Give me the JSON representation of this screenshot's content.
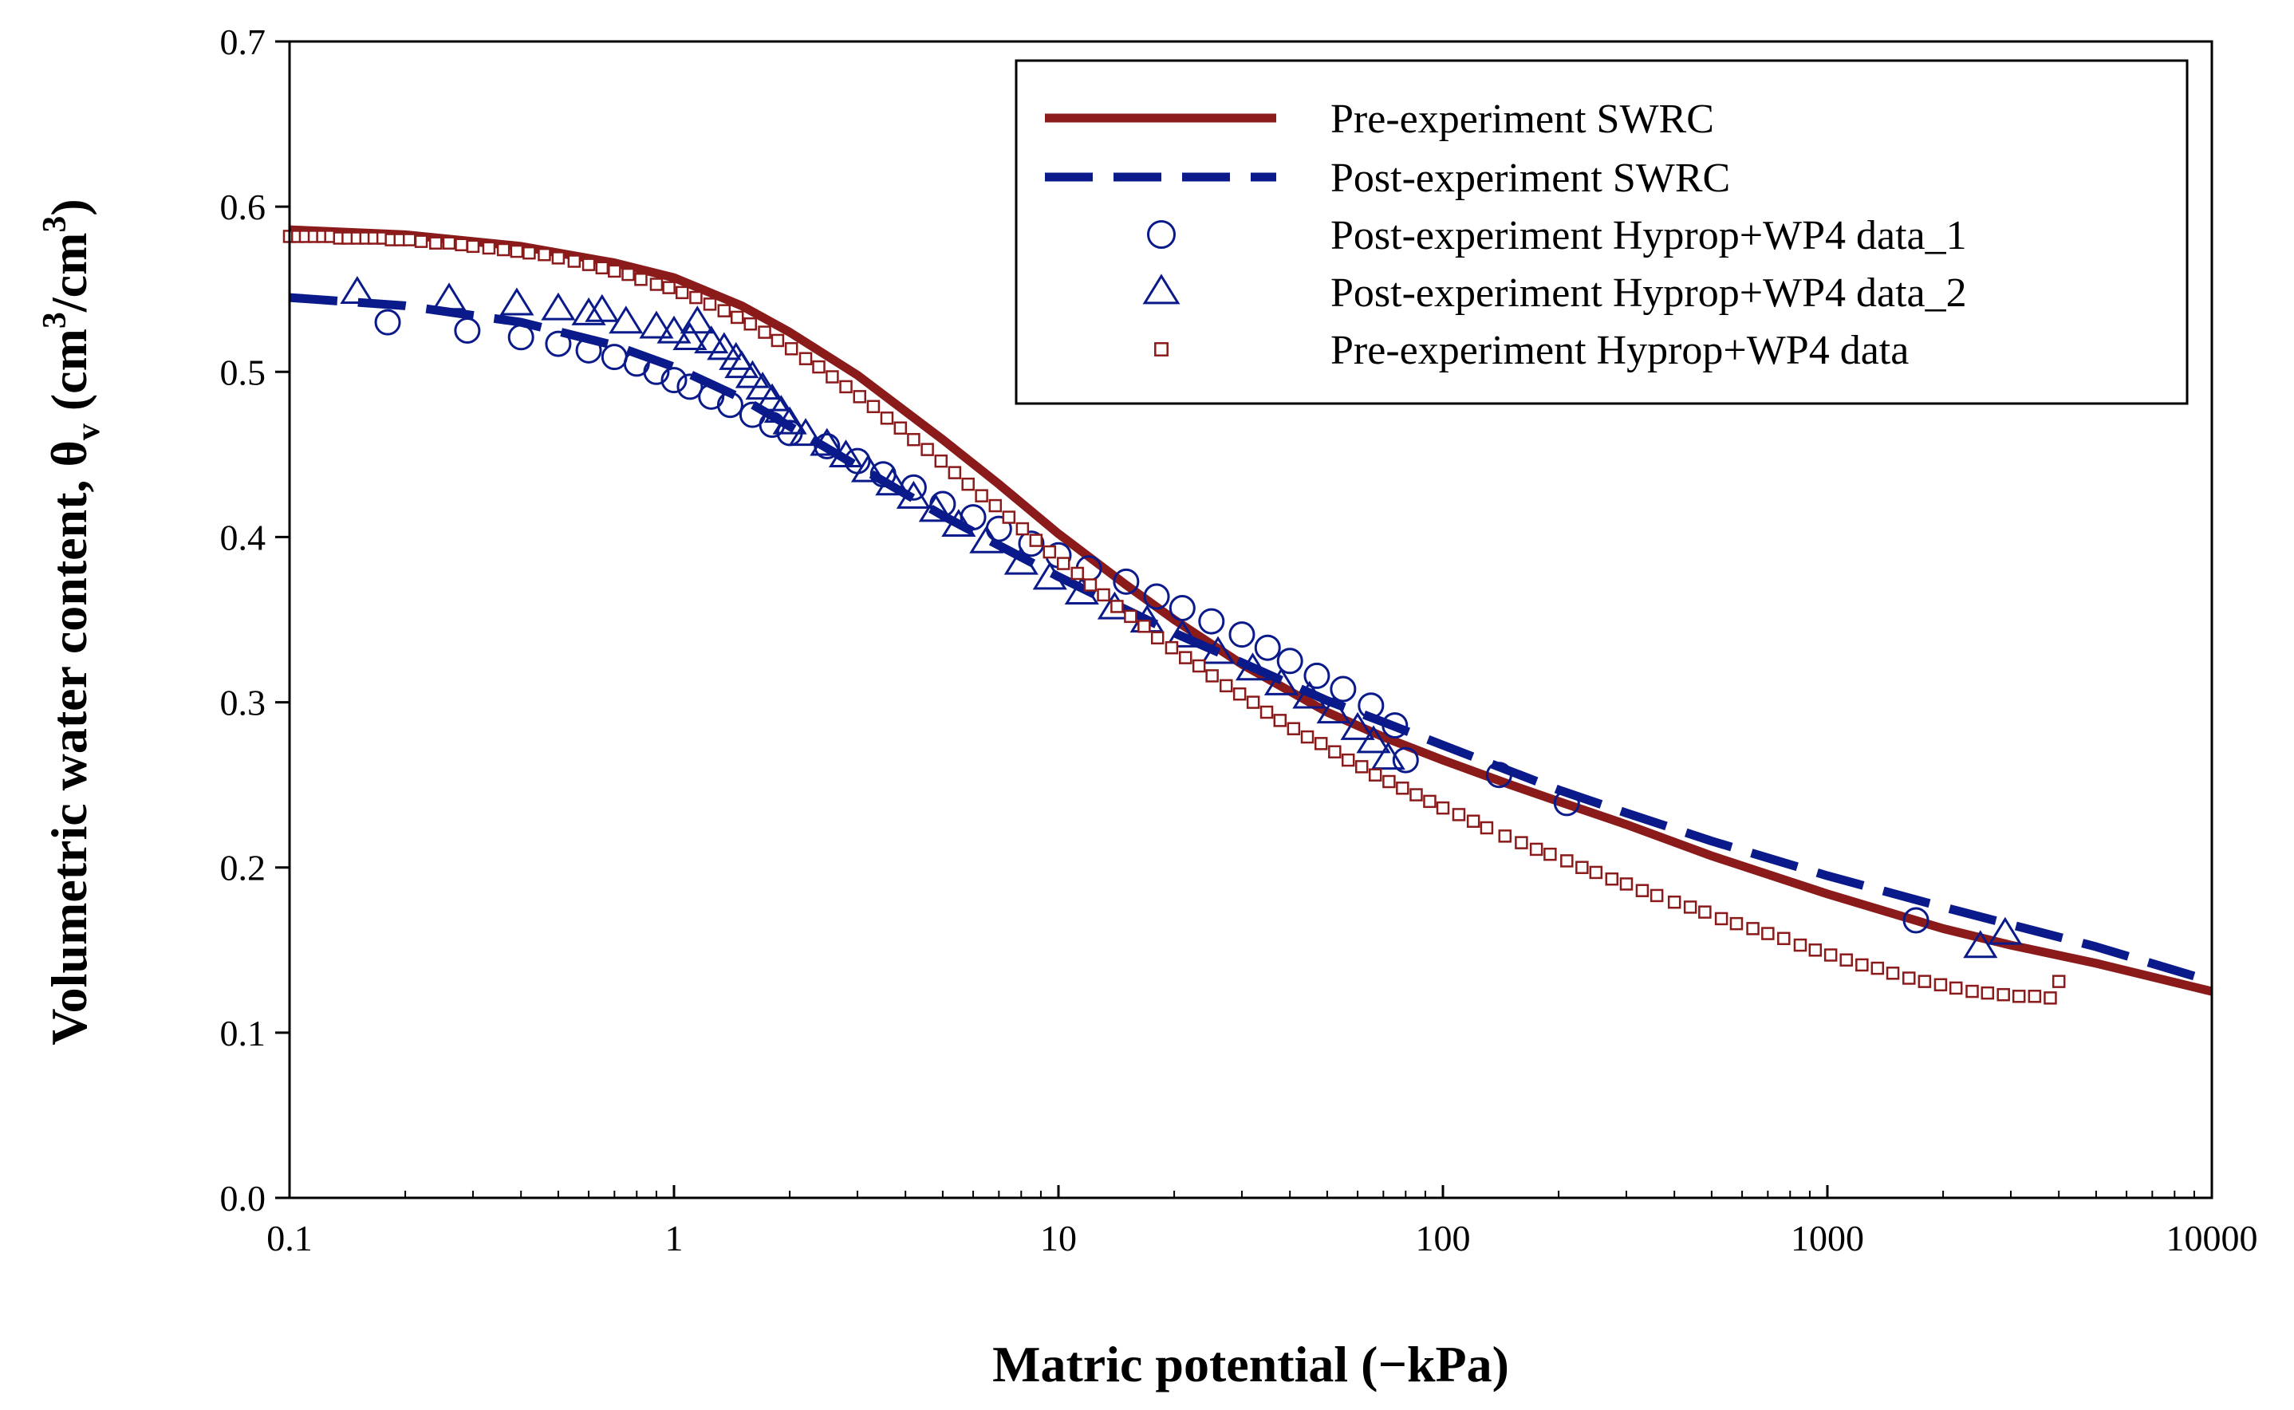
{
  "chart_data": {
    "type": "scatter",
    "title": "",
    "xlabel": "Matric potential (−kPa)",
    "ylabel": {
      "main": "Volumetric water content, θ",
      "sub": "v",
      "units_open": " (cm",
      "sup1": "3",
      "units_mid": "/cm",
      "sup2": "3",
      "units_close": ")"
    },
    "xscale": "log",
    "xlim": [
      0.1,
      10000
    ],
    "ylim": [
      0.0,
      0.7
    ],
    "xticks": [
      "0.1",
      "1",
      "10",
      "100",
      "1000",
      "10000"
    ],
    "xtick_values": [
      0.1,
      1,
      10,
      100,
      1000,
      10000
    ],
    "yticks": [
      "0.0",
      "0.1",
      "0.2",
      "0.3",
      "0.4",
      "0.5",
      "0.6",
      "0.7"
    ],
    "ytick_values": [
      0.0,
      0.1,
      0.2,
      0.3,
      0.4,
      0.5,
      0.6,
      0.7
    ],
    "grid": false,
    "legend_position": "top-right",
    "colors": {
      "pre": "#8b1a1a",
      "post": "#0a1a8a",
      "axis": "#000000"
    },
    "series": [
      {
        "name": "Pre-experiment SWRC",
        "style": "solid-line",
        "x": [
          0.1,
          0.2,
          0.4,
          0.7,
          1.0,
          1.5,
          2.0,
          3.0,
          5.0,
          7.0,
          10,
          15,
          20,
          30,
          50,
          70,
          100,
          150,
          200,
          300,
          500,
          1000,
          2000,
          3000,
          5000,
          10000
        ],
        "y": [
          0.586,
          0.583,
          0.576,
          0.566,
          0.557,
          0.54,
          0.524,
          0.498,
          0.459,
          0.432,
          0.402,
          0.371,
          0.35,
          0.323,
          0.294,
          0.279,
          0.265,
          0.25,
          0.24,
          0.226,
          0.207,
          0.184,
          0.163,
          0.153,
          0.142,
          0.125
        ]
      },
      {
        "name": "Post-experiment SWRC",
        "style": "dashed-line",
        "x": [
          0.1,
          0.2,
          0.4,
          0.7,
          1.0,
          1.5,
          2.0,
          3.0,
          5.0,
          7.0,
          10,
          15,
          20,
          30,
          50,
          70,
          100,
          200,
          300,
          500,
          1000,
          2000,
          5000,
          10000
        ],
        "y": [
          0.545,
          0.54,
          0.53,
          0.516,
          0.503,
          0.484,
          0.467,
          0.443,
          0.413,
          0.395,
          0.376,
          0.356,
          0.342,
          0.324,
          0.301,
          0.288,
          0.274,
          0.247,
          0.233,
          0.216,
          0.195,
          0.176,
          0.152,
          0.131
        ]
      },
      {
        "name": "Post-experiment Hyprop+WP4 data_1",
        "style": "open-circle",
        "x": [
          0.18,
          0.29,
          0.4,
          0.5,
          0.6,
          0.7,
          0.8,
          0.9,
          1.0,
          1.1,
          1.25,
          1.4,
          1.6,
          1.8,
          2.0,
          2.5,
          3.0,
          3.5,
          4.2,
          5.0,
          6.0,
          7.0,
          8.5,
          10.0,
          12.0,
          15.0,
          18.0,
          21.0,
          25.0,
          30.0,
          35.0,
          40.0,
          47.0,
          55.0,
          65.0,
          75.0,
          80.0,
          140.0,
          210.0,
          1700.0
        ],
        "y": [
          0.53,
          0.525,
          0.521,
          0.517,
          0.513,
          0.509,
          0.505,
          0.5,
          0.495,
          0.491,
          0.485,
          0.48,
          0.474,
          0.468,
          0.463,
          0.455,
          0.446,
          0.438,
          0.43,
          0.42,
          0.412,
          0.405,
          0.396,
          0.389,
          0.381,
          0.373,
          0.364,
          0.357,
          0.349,
          0.341,
          0.333,
          0.325,
          0.316,
          0.308,
          0.298,
          0.286,
          0.265,
          0.256,
          0.239,
          0.168
        ]
      },
      {
        "name": "Post-experiment Hyprop+WP4 data_2",
        "style": "open-triangle",
        "x": [
          0.15,
          0.26,
          0.39,
          0.5,
          0.6,
          0.65,
          0.75,
          0.9,
          1.0,
          1.1,
          1.15,
          1.25,
          1.35,
          1.45,
          1.5,
          1.6,
          1.7,
          1.8,
          1.9,
          2.0,
          2.2,
          2.5,
          2.8,
          3.2,
          3.7,
          4.2,
          4.8,
          5.5,
          6.5,
          8.0,
          9.5,
          11.5,
          14.0,
          17.0,
          21.0,
          26.0,
          32.0,
          38.0,
          45.0,
          52.0,
          60.0,
          66.0,
          72.0,
          2500.0,
          2900.0
        ],
        "y": [
          0.548,
          0.544,
          0.541,
          0.538,
          0.535,
          0.537,
          0.53,
          0.527,
          0.524,
          0.52,
          0.53,
          0.518,
          0.514,
          0.508,
          0.503,
          0.497,
          0.49,
          0.483,
          0.476,
          0.469,
          0.462,
          0.456,
          0.449,
          0.44,
          0.432,
          0.424,
          0.416,
          0.407,
          0.397,
          0.384,
          0.375,
          0.366,
          0.357,
          0.349,
          0.34,
          0.33,
          0.32,
          0.311,
          0.303,
          0.294,
          0.284,
          0.276,
          0.266,
          0.152,
          0.16
        ]
      },
      {
        "name": "Pre-experiment Hyprop+WP4 data",
        "style": "open-square",
        "x": [
          0.1,
          0.105,
          0.11,
          0.116,
          0.122,
          0.128,
          0.135,
          0.142,
          0.15,
          0.158,
          0.166,
          0.175,
          0.184,
          0.194,
          0.205,
          0.22,
          0.24,
          0.26,
          0.28,
          0.3,
          0.33,
          0.36,
          0.39,
          0.42,
          0.46,
          0.5,
          0.55,
          0.6,
          0.65,
          0.7,
          0.76,
          0.82,
          0.9,
          0.97,
          1.05,
          1.14,
          1.24,
          1.35,
          1.46,
          1.58,
          1.72,
          1.86,
          2.02,
          2.2,
          2.38,
          2.58,
          2.8,
          3.04,
          3.3,
          3.58,
          3.88,
          4.2,
          4.56,
          4.95,
          5.37,
          5.82,
          6.31,
          6.85,
          7.43,
          8.06,
          8.74,
          9.48,
          10.3,
          11.2,
          12.1,
          13.1,
          14.2,
          15.4,
          16.7,
          18.1,
          19.7,
          21.4,
          23.2,
          25.1,
          27.3,
          29.6,
          32.1,
          34.8,
          37.7,
          40.9,
          44.4,
          48.2,
          52.3,
          56.7,
          61.5,
          66.7,
          72.4,
          78.5,
          85.2,
          92.4,
          100,
          110,
          120,
          130,
          145,
          160,
          175,
          190,
          210,
          230,
          250,
          275,
          300,
          330,
          360,
          400,
          440,
          480,
          530,
          580,
          640,
          700,
          770,
          850,
          930,
          1020,
          1120,
          1230,
          1350,
          1480,
          1630,
          1790,
          1970,
          2160,
          2380,
          2610,
          2870,
          3150,
          3460,
          3800,
          4000
        ],
        "y": [
          0.582,
          0.582,
          0.582,
          0.582,
          0.582,
          0.582,
          0.581,
          0.581,
          0.581,
          0.581,
          0.581,
          0.581,
          0.58,
          0.58,
          0.58,
          0.579,
          0.578,
          0.578,
          0.577,
          0.576,
          0.575,
          0.574,
          0.573,
          0.572,
          0.571,
          0.569,
          0.567,
          0.565,
          0.563,
          0.561,
          0.559,
          0.556,
          0.553,
          0.551,
          0.548,
          0.545,
          0.541,
          0.537,
          0.533,
          0.529,
          0.524,
          0.519,
          0.514,
          0.508,
          0.503,
          0.497,
          0.491,
          0.485,
          0.479,
          0.472,
          0.466,
          0.459,
          0.453,
          0.446,
          0.439,
          0.432,
          0.425,
          0.419,
          0.412,
          0.405,
          0.398,
          0.391,
          0.384,
          0.378,
          0.371,
          0.365,
          0.358,
          0.352,
          0.346,
          0.339,
          0.333,
          0.327,
          0.322,
          0.316,
          0.31,
          0.305,
          0.3,
          0.294,
          0.289,
          0.284,
          0.279,
          0.275,
          0.27,
          0.265,
          0.261,
          0.256,
          0.252,
          0.248,
          0.244,
          0.24,
          0.236,
          0.232,
          0.228,
          0.224,
          0.219,
          0.215,
          0.211,
          0.208,
          0.204,
          0.2,
          0.197,
          0.193,
          0.19,
          0.186,
          0.183,
          0.179,
          0.176,
          0.173,
          0.169,
          0.166,
          0.163,
          0.16,
          0.157,
          0.153,
          0.15,
          0.147,
          0.144,
          0.141,
          0.139,
          0.136,
          0.133,
          0.131,
          0.129,
          0.127,
          0.125,
          0.124,
          0.123,
          0.122,
          0.122,
          0.121,
          0.131
        ]
      }
    ]
  }
}
